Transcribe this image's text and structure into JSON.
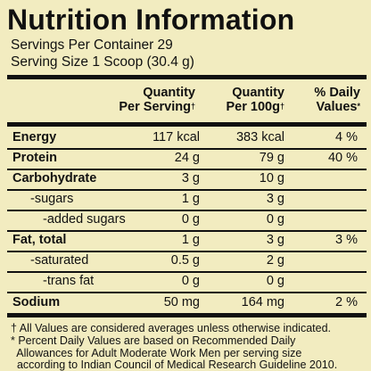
{
  "title": "Nutrition Information",
  "servings_per_container": "Servings Per Container 29",
  "serving_size": "Serving Size 1 Scoop (30.4 g)",
  "columns": {
    "per_serving_line1": "Quantity",
    "per_serving_line2": "Per Serving",
    "per_serving_mark": "†",
    "per_100g_line1": "Quantity",
    "per_100g_line2": "Per 100g",
    "per_100g_mark": "†",
    "daily_line1": "% Daily",
    "daily_line2": "Values",
    "daily_mark": "*"
  },
  "rows": [
    {
      "name": "Energy",
      "per_serving": "117 kcal",
      "per_100g": "383 kcal",
      "daily": "4 %"
    },
    {
      "name": "Protein",
      "per_serving": "24 g",
      "per_100g": "79 g",
      "daily": "40 %"
    },
    {
      "name": "Carbohydrate",
      "per_serving": "3 g",
      "per_100g": "10 g",
      "daily": ""
    },
    {
      "name": "-sugars",
      "per_serving": "1 g",
      "per_100g": "3 g",
      "daily": ""
    },
    {
      "name": "-added sugars",
      "per_serving": "0 g",
      "per_100g": "0 g",
      "daily": ""
    },
    {
      "name": "Fat, total",
      "per_serving": "1 g",
      "per_100g": "3 g",
      "daily": "3 %"
    },
    {
      "name": "-saturated",
      "per_serving": "0.5 g",
      "per_100g": "2 g",
      "daily": ""
    },
    {
      "name": "-trans fat",
      "per_serving": "0 g",
      "per_100g": "0 g",
      "daily": ""
    },
    {
      "name": "Sodium",
      "per_serving": "50 mg",
      "per_100g": "164 mg",
      "daily": "2 %"
    }
  ],
  "footnotes": [
    "† All Values are considered averages unless otherwise indicated.",
    "* Percent Daily Values are based on Recommended Daily",
    "  Allowances for Adult Moderate Work Men per serving size",
    "  according to Indian Council of Medical Research Guideline 2010."
  ]
}
